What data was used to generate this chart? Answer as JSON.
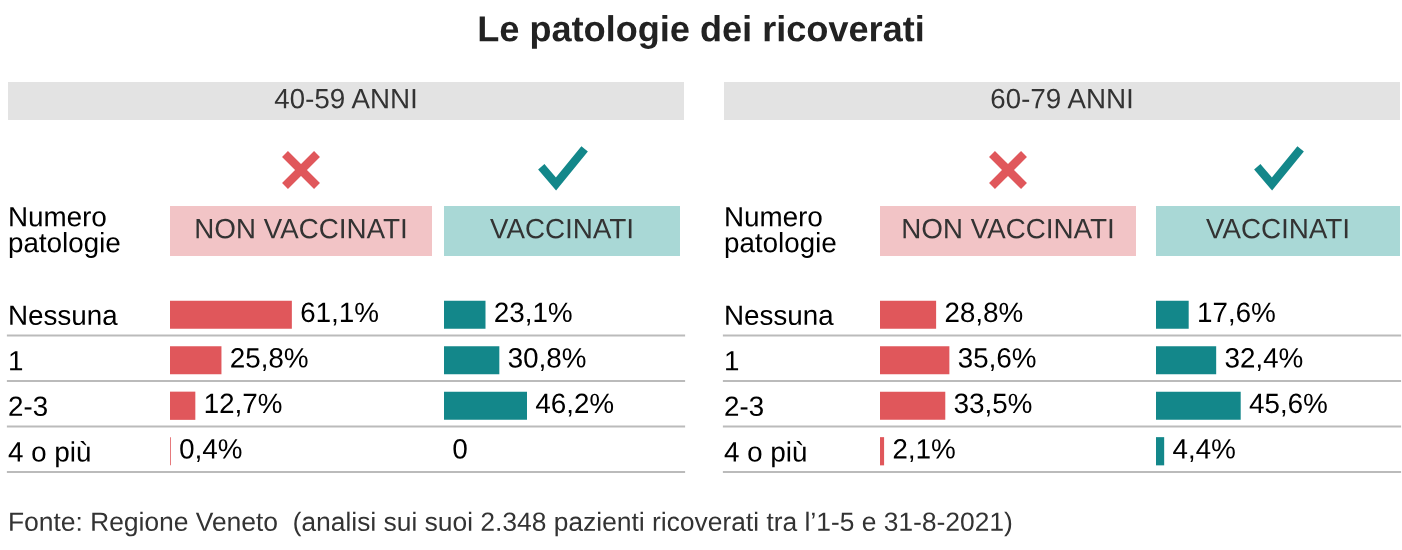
{
  "chart_data": [
    {
      "type": "bar",
      "orientation": "horizontal",
      "title": "NON VACCINATI",
      "ylabel": "Numero\npatologie",
      "categories": [
        "Nessuna",
        "1",
        "2-3",
        "4 o più"
      ],
      "values": [
        61.1,
        25.8,
        12.7,
        0.4
      ],
      "value_labels": [
        "61,1%",
        "25,8%",
        "12,7%",
        "0,4%"
      ],
      "color": "#e0575b",
      "annotations": [
        "Le patologie dei ricoverati",
        "40-59 ANNI",
        "60-79 ANNI",
        "Fonte: Regione Veneto  (analisi sui suoi 2.348 pazienti ricoverati tra l’1-5 e 31-8-2021)"
      ]
    },
    {
      "type": "bar",
      "orientation": "horizontal",
      "title": "VACCINATI",
      "categories": [
        null,
        null,
        null,
        null
      ],
      "values": [
        23.1,
        30.8,
        46.2,
        0
      ],
      "value_labels": [
        "23,1%",
        "30,8%",
        "46,2%",
        "0"
      ],
      "color": "#13878a"
    },
    {
      "type": "bar",
      "orientation": "horizontal",
      "title": "NON VACCINATI",
      "ylabel": "Numero\npatologie",
      "categories": [
        "Nessuna",
        "1",
        "2-3",
        "4 o più"
      ],
      "values": [
        28.8,
        35.6,
        33.5,
        2.1
      ],
      "value_labels": [
        "28,8%",
        "35,6%",
        "33,5%",
        "2,1%"
      ],
      "color": "#e0575b"
    },
    {
      "type": "bar",
      "orientation": "horizontal",
      "title": "VACCINATI",
      "categories": [
        null,
        null,
        null,
        null
      ],
      "values": [
        17.6,
        32.4,
        45.6,
        4.4
      ],
      "value_labels": [
        "17,6%",
        "32,4%",
        "45,6%",
        "4,4%"
      ],
      "color": "#13878a"
    }
  ]
}
